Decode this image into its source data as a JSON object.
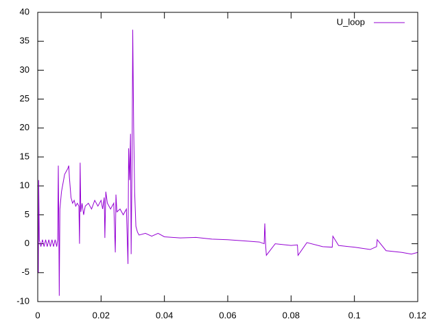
{
  "chart_data": {
    "type": "line",
    "x": [
      0,
      0.0002,
      0.0003,
      0.0005,
      0.001,
      0.0015,
      0.002,
      0.0025,
      0.003,
      0.0035,
      0.004,
      0.0045,
      0.005,
      0.0055,
      0.006,
      0.0063,
      0.0065,
      0.0067,
      0.0068,
      0.007,
      0.0075,
      0.008,
      0.0085,
      0.009,
      0.0095,
      0.0098,
      0.01,
      0.0105,
      0.011,
      0.0115,
      0.012,
      0.0125,
      0.013,
      0.0132,
      0.0134,
      0.0136,
      0.014,
      0.0145,
      0.015,
      0.016,
      0.017,
      0.018,
      0.019,
      0.02,
      0.0205,
      0.021,
      0.0212,
      0.0215,
      0.022,
      0.023,
      0.024,
      0.0245,
      0.0247,
      0.025,
      0.026,
      0.027,
      0.028,
      0.0285,
      0.0287,
      0.029,
      0.0293,
      0.0295,
      0.0298,
      0.03,
      0.0303,
      0.0306,
      0.031,
      0.0315,
      0.032,
      0.034,
      0.036,
      0.038,
      0.04,
      0.045,
      0.05,
      0.055,
      0.06,
      0.065,
      0.07,
      0.0715,
      0.0717,
      0.072,
      0.0722,
      0.075,
      0.08,
      0.082,
      0.0822,
      0.085,
      0.09,
      0.093,
      0.0932,
      0.095,
      0.1,
      0.105,
      0.107,
      0.1072,
      0.11,
      0.115,
      0.118,
      0.12
    ],
    "series": [
      {
        "name": "U_loop",
        "color": "#9400d3",
        "values": [
          0.7,
          -5,
          11,
          0.7,
          -0.5,
          0.7,
          -0.5,
          0.7,
          -0.5,
          0.7,
          -0.5,
          0.7,
          -0.5,
          0.7,
          -0.5,
          0.7,
          13.5,
          -0.5,
          -9,
          6,
          9,
          10.5,
          12,
          12.5,
          13,
          13.5,
          11.5,
          8,
          7,
          7.5,
          6.5,
          7,
          6.5,
          0,
          14,
          5.5,
          7,
          5,
          6.5,
          7,
          6,
          7.5,
          6.5,
          7.5,
          6,
          8,
          1,
          9,
          7,
          6,
          7,
          -1.5,
          8.5,
          5.5,
          6,
          5,
          6,
          -3.5,
          16.5,
          11,
          19,
          -1.8,
          15,
          37,
          20,
          9,
          3,
          2,
          1.5,
          1.8,
          1.3,
          1.8,
          1.2,
          1,
          1.1,
          0.8,
          0.7,
          0.5,
          0.3,
          0,
          3.5,
          -0.5,
          -2,
          0,
          -0.3,
          -0.2,
          -2,
          0.2,
          -0.5,
          -0.6,
          1.3,
          -0.3,
          -0.6,
          -1,
          -0.5,
          0.7,
          -1.2,
          -1.5,
          -1.8,
          -1.5
        ]
      }
    ],
    "xlim": [
      0,
      0.12
    ],
    "ylim": [
      -10,
      40
    ],
    "xticks": [
      0,
      0.02,
      0.04,
      0.06,
      0.08,
      0.1,
      0.12
    ],
    "yticks": [
      -10,
      -5,
      0,
      5,
      10,
      15,
      20,
      25,
      30,
      35,
      40
    ],
    "legend": "top-right"
  }
}
